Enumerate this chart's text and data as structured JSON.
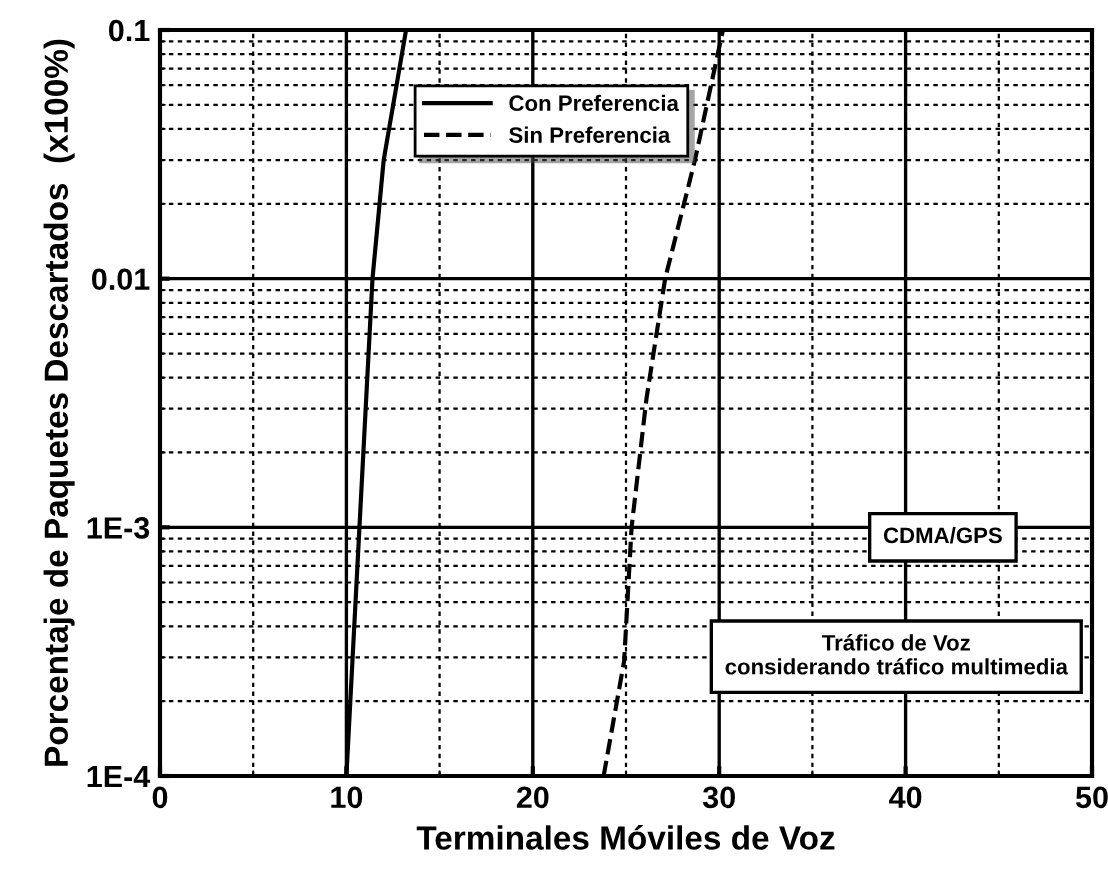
{
  "chart_data": {
    "type": "line",
    "xlabel": "Terminales Móviles de Voz",
    "ylabel": "Porcentaje de Paquetes Descartados  (x100%)",
    "log": "y",
    "grid": true,
    "legend": "top",
    "marker": "none",
    "xlim": [
      0,
      50
    ],
    "xticks": [
      0,
      10,
      20,
      30,
      40,
      50
    ],
    "ylim": [
      0.0001,
      0.1
    ],
    "yticks": [
      {
        "value": 0.0001,
        "label": "1E-4"
      },
      {
        "value": 0.001,
        "label": "1E-3"
      },
      0.01,
      0.1
    ],
    "series": [
      {
        "name": "Con Preferencia",
        "color": "#000000",
        "line_style": "solid",
        "x": [
          10.0,
          10.7,
          11.4,
          12.0,
          13.2
        ],
        "values": [
          0.0001,
          0.001,
          0.01,
          0.03,
          0.1
        ]
      },
      {
        "name": "Sin Preferencia",
        "color": "#000000",
        "line_style": "dashed",
        "x": [
          23.8,
          24.9,
          25.3,
          26.1,
          27.1,
          28.7,
          30.2
        ],
        "values": [
          0.0001,
          0.00029,
          0.001,
          0.0033,
          0.01,
          0.03,
          0.1
        ]
      }
    ],
    "annotations": [
      "CDMA/GPS",
      "Tráfico de Voz\nconsiderando tráfico multimedia"
    ]
  }
}
